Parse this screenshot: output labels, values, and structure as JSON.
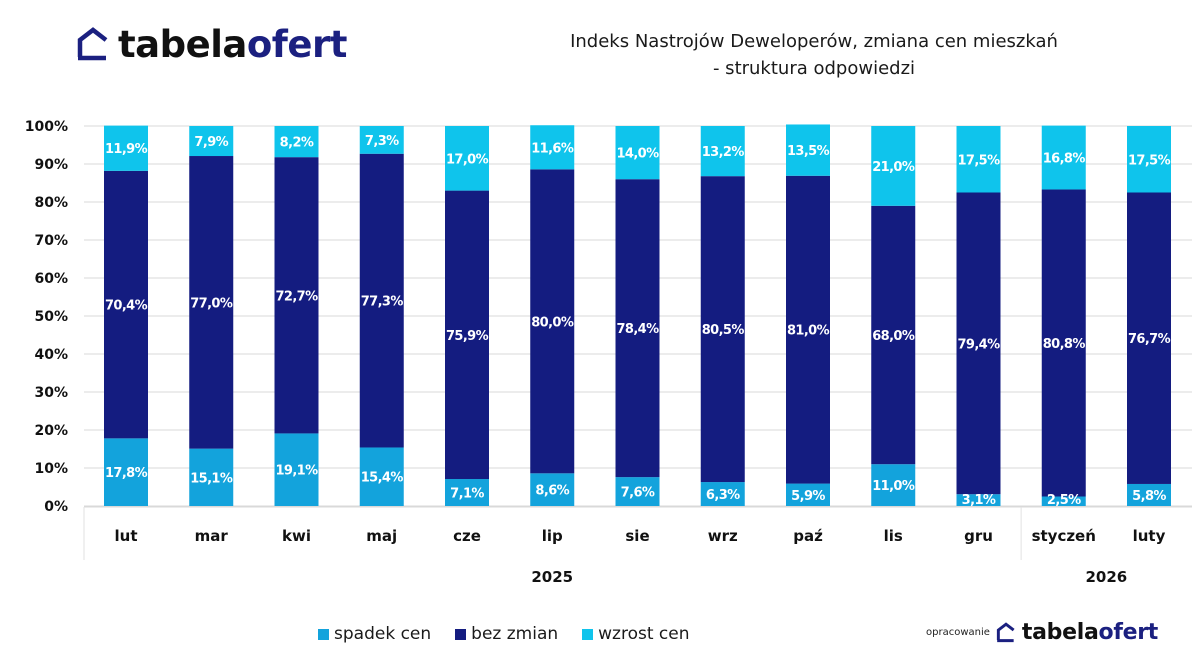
{
  "brand": {
    "name_part1": "tabela",
    "name_part2": "ofert",
    "icon": "house-outline-icon",
    "color_dark": "#111111",
    "color_accent": "#1b2080"
  },
  "footer": {
    "prefix": "opracowanie",
    "name_part1": "tabela",
    "name_part2": "ofert"
  },
  "chart_data": {
    "type": "bar",
    "stacked": true,
    "normalized": true,
    "title": "Indeks Nastrojów Deweloperów, zmiana cen mieszkań",
    "subtitle": "- struktura odpowiedzi",
    "xlabel": "",
    "ylabel": "",
    "ylim": [
      0,
      100
    ],
    "yticks": [
      "0%",
      "10%",
      "20%",
      "30%",
      "40%",
      "50%",
      "60%",
      "70%",
      "80%",
      "90%",
      "100%"
    ],
    "grid": true,
    "categories": [
      "lut",
      "mar",
      "kwi",
      "maj",
      "cze",
      "lip",
      "sie",
      "wrz",
      "paź",
      "lis",
      "gru",
      "styczeń",
      "luty"
    ],
    "category_groups": [
      {
        "label": "2025",
        "start": 0,
        "end": 10
      },
      {
        "label": "2026",
        "start": 11,
        "end": 12
      }
    ],
    "series": [
      {
        "name": "spadek cen",
        "color": "#13a3dc",
        "values": [
          17.8,
          15.1,
          19.1,
          15.4,
          7.1,
          8.6,
          7.6,
          6.3,
          5.9,
          11.0,
          3.1,
          2.5,
          5.8
        ],
        "labels": [
          "17,8%",
          "15,1%",
          "19,1%",
          "15,4%",
          "7,1%",
          "8,6%",
          "7,6%",
          "6,3%",
          "5,9%",
          "11,0%",
          "3,1%",
          "2,5%",
          "5,8%"
        ]
      },
      {
        "name": "bez zmian",
        "color": "#141c80",
        "values": [
          70.4,
          77.0,
          72.7,
          77.3,
          75.9,
          80.0,
          78.4,
          80.5,
          81.0,
          68.0,
          79.4,
          80.8,
          76.7
        ],
        "labels": [
          "70,4%",
          "77,0%",
          "72,7%",
          "77,3%",
          "75,9%",
          "80,0%",
          "78,4%",
          "80,5%",
          "81,0%",
          "68,0%",
          "79,4%",
          "80,8%",
          "76,7%"
        ]
      },
      {
        "name": "wzrost cen",
        "color": "#0fc4ec",
        "values": [
          11.9,
          7.9,
          8.2,
          7.3,
          17.0,
          11.6,
          14.0,
          13.2,
          13.5,
          21.0,
          17.5,
          16.8,
          17.5
        ],
        "labels": [
          "11,9%",
          "7,9%",
          "8,2%",
          "7,3%",
          "17,0%",
          "11,6%",
          "14,0%",
          "13,2%",
          "13,5%",
          "21,0%",
          "17,5%",
          "16,8%",
          "17,5%"
        ]
      }
    ],
    "legend_position": "bottom-center"
  }
}
